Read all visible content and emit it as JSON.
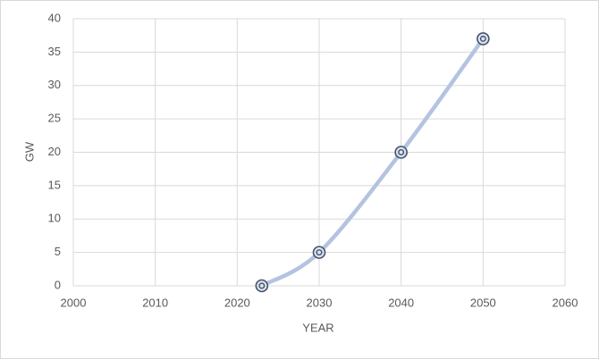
{
  "chart_data": {
    "type": "scatter-smooth",
    "x_label": "YEAR",
    "y_label": "GW",
    "x": [
      2023,
      2030,
      2040,
      2050
    ],
    "series": [
      {
        "color": "#b4c3e0",
        "marker_color": "#44546a",
        "values": [
          0,
          5,
          20,
          37
        ]
      }
    ],
    "xlim": [
      2000,
      2060
    ],
    "xticks": [
      2000,
      2010,
      2020,
      2030,
      2040,
      2050,
      2060
    ],
    "ylim": [
      0,
      40
    ],
    "yticks": [
      0,
      5,
      10,
      15,
      20,
      25,
      30,
      35,
      40
    ],
    "grid": true
  }
}
